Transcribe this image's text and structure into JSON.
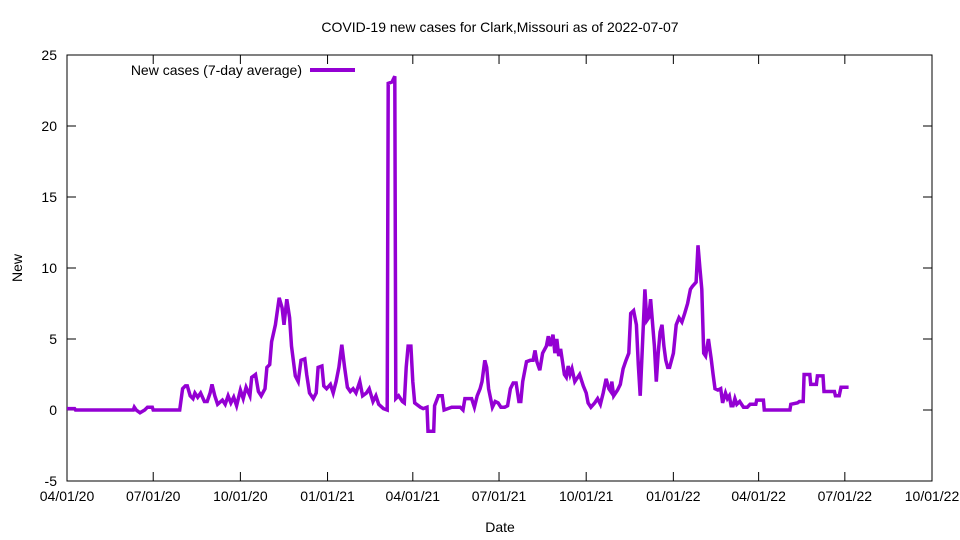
{
  "chart_data": {
    "type": "line",
    "title": "COVID-19 new cases for Clark,Missouri as of 2022-07-07",
    "xlabel": "Date",
    "ylabel": "New",
    "x_units": "days since 04/01/20",
    "xlim_days": [
      0,
      913
    ],
    "ylim": [
      -5,
      25
    ],
    "y_ticks": [
      -5,
      0,
      5,
      10,
      15,
      20,
      25
    ],
    "x_ticks": [
      {
        "label": "04/01/20",
        "day": 0
      },
      {
        "label": "07/01/20",
        "day": 91
      },
      {
        "label": "10/01/20",
        "day": 183
      },
      {
        "label": "01/01/21",
        "day": 275
      },
      {
        "label": "04/01/21",
        "day": 365
      },
      {
        "label": "07/01/21",
        "day": 456
      },
      {
        "label": "10/01/21",
        "day": 548
      },
      {
        "label": "01/01/22",
        "day": 640
      },
      {
        "label": "04/01/22",
        "day": 730
      },
      {
        "label": "07/01/22",
        "day": 821
      },
      {
        "label": "10/01/22",
        "day": 913
      }
    ],
    "grid": false,
    "legend_position": "top-left",
    "series": [
      {
        "name": "New cases (7-day average)",
        "color": "#9400d3",
        "x_days": [
          0,
          8,
          9,
          70,
          71,
          73,
          77,
          82,
          85,
          90,
          91,
          119,
          122,
          125,
          127,
          130,
          133,
          135,
          138,
          141,
          145,
          148,
          151,
          153,
          156,
          159,
          164,
          167,
          170,
          173,
          176,
          179,
          183,
          186,
          189,
          193,
          195,
          199,
          202,
          205,
          209,
          211,
          214,
          216,
          220,
          224,
          227,
          229,
          232,
          235,
          237,
          241,
          244,
          247,
          251,
          253,
          256,
          260,
          263,
          265,
          269,
          271,
          274,
          278,
          281,
          284,
          287,
          290,
          293,
          296,
          299,
          302,
          305,
          309,
          312,
          316,
          319,
          323,
          326,
          329,
          334,
          338,
          339,
          343,
          346,
          347,
          350,
          354,
          356,
          358,
          360,
          363,
          365,
          367,
          373,
          376,
          380,
          381,
          387,
          388,
          392,
          396,
          398,
          402,
          406,
          415,
          418,
          420,
          427,
          430,
          433,
          436,
          438,
          441,
          443,
          445,
          449,
          452,
          455,
          458,
          462,
          465,
          468,
          471,
          474,
          477,
          479,
          481,
          485,
          489,
          492,
          494,
          496,
          499,
          502,
          506,
          508,
          510,
          513,
          515,
          517,
          519,
          521,
          525,
          527,
          529,
          531,
          533,
          536,
          538,
          541,
          545,
          548,
          550,
          553,
          557,
          560,
          563,
          566,
          569,
          572,
          574,
          575,
          577,
          581,
          584,
          587,
          590,
          593,
          595,
          598,
          601,
          603,
          605,
          607,
          610,
          612,
          614,
          616,
          620,
          622,
          624,
          626,
          628,
          630,
          632,
          634,
          636,
          640,
          643,
          646,
          649,
          652,
          655,
          658,
          660,
          664,
          666,
          668,
          670,
          672,
          674,
          677,
          680,
          682,
          684,
          687,
          690,
          692,
          695,
          697,
          699,
          701,
          703,
          705,
          707,
          710,
          714,
          718,
          721,
          724,
          727,
          728,
          735,
          736,
          763,
          764,
          771,
          773,
          777,
          778,
          784,
          785,
          791,
          792,
          798,
          799,
          810,
          811,
          815,
          817,
          825
        ],
        "values": [
          0.1,
          0.1,
          0,
          0,
          0.2,
          0,
          -0.2,
          0,
          0.2,
          0.2,
          0,
          0,
          1.5,
          1.7,
          1.7,
          1,
          0.8,
          1.2,
          0.9,
          1.2,
          0.6,
          0.6,
          1.2,
          1.8,
          1.0,
          0.4,
          0.7,
          0.4,
          1.0,
          0.5,
          0.9,
          0.3,
          1.4,
          0.8,
          1.6,
          1.0,
          2.3,
          2.5,
          1.3,
          1.0,
          1.5,
          3.0,
          3.2,
          4.8,
          6.0,
          7.9,
          7.2,
          6.0,
          7.8,
          6.5,
          4.5,
          2.4,
          2.0,
          3.5,
          3.6,
          2.5,
          1.2,
          0.8,
          1.2,
          3.0,
          3.1,
          1.7,
          1.5,
          1.8,
          1.2,
          2.0,
          3.0,
          4.6,
          3.0,
          1.6,
          1.3,
          1.5,
          1.2,
          2.0,
          1.0,
          1.2,
          1.5,
          0.6,
          1.0,
          0.4,
          0.1,
          0,
          23,
          23.1,
          23.5,
          0.8,
          1.0,
          0.6,
          0.5,
          3.0,
          4.5,
          4.5,
          2.0,
          0.5,
          0.2,
          0.1,
          0.2,
          -1.5,
          -1.5,
          0.3,
          1.0,
          1.0,
          0,
          0.1,
          0.2,
          0.2,
          0,
          0.8,
          0.8,
          0.2,
          1.0,
          1.5,
          2.0,
          3.5,
          3.0,
          1.5,
          0.2,
          0.6,
          0.5,
          0.2,
          0.2,
          0.3,
          1.5,
          1.9,
          1.9,
          0.6,
          0.6,
          2.0,
          3.4,
          3.5,
          3.5,
          4.2,
          3.4,
          2.8,
          4.0,
          4.5,
          5.2,
          4.5,
          5.3,
          4.0,
          5.0,
          3.8,
          4.3,
          2.5,
          2.3,
          3.1,
          2.5,
          2.9,
          2.0,
          2.2,
          2.5,
          1.7,
          1.2,
          0.5,
          0.2,
          0.5,
          0.8,
          0.4,
          1.2,
          2.2,
          1.5,
          1.3,
          2.0,
          1.0,
          1.4,
          1.8,
          2.9,
          3.5,
          4.0,
          6.8,
          7.0,
          6.0,
          3.2,
          1.0,
          4.0,
          8.5,
          6.3,
          6.5,
          7.8,
          4.5,
          2.0,
          4.0,
          5.5,
          6.0,
          4.5,
          3.5,
          3.0,
          3.0,
          4.0,
          6.0,
          6.5,
          6.2,
          6.8,
          7.5,
          8.5,
          8.7,
          9.0,
          11.6,
          10.0,
          8.5,
          4.0,
          3.8,
          5.0,
          3.6,
          2.5,
          1.5,
          1.4,
          1.5,
          0.5,
          1.2,
          0.8,
          1.0,
          0.3,
          0.3,
          0.8,
          0.4,
          0.6,
          0.2,
          0.2,
          0.4,
          0.4,
          0.4,
          0.7,
          0.7,
          0,
          0,
          0.4,
          0.5,
          0.6,
          0.6,
          2.5,
          2.5,
          1.8,
          1.8,
          2.4,
          2.4,
          1.3,
          1.3,
          1.0,
          1.0,
          1.6,
          1.6
        ]
      }
    ]
  }
}
